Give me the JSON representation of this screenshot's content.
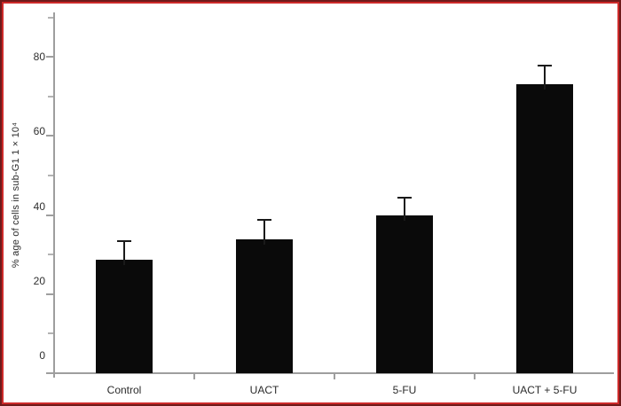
{
  "figure": {
    "background_color": "#ffffff",
    "border_outer_color": "#6e1b1b",
    "border_inner_color": "#cd2a2a"
  },
  "chart_data": {
    "type": "bar",
    "title": "",
    "xlabel": "",
    "ylabel": "% age of cells in sub-G1 1 × 10⁴",
    "categories": [
      "Control",
      "UACT",
      "5-FU",
      "UACT + 5-FU"
    ],
    "values": [
      28.8,
      33.8,
      39.8,
      73.0
    ],
    "error_bars": [
      4.6,
      4.9,
      4.7,
      4.8
    ],
    "ylim": [
      0,
      90
    ],
    "yticks_major": [
      0,
      20,
      40,
      60,
      80
    ],
    "yticks_minor": [
      10,
      30,
      50,
      70,
      90
    ],
    "grid": false,
    "legend_position": "none",
    "bar_color": "#0a0a0a",
    "error_bar_color": "#1a1a1a",
    "axis_color": "#9e9e9e",
    "tick_label_color": "#2f2f2f"
  }
}
